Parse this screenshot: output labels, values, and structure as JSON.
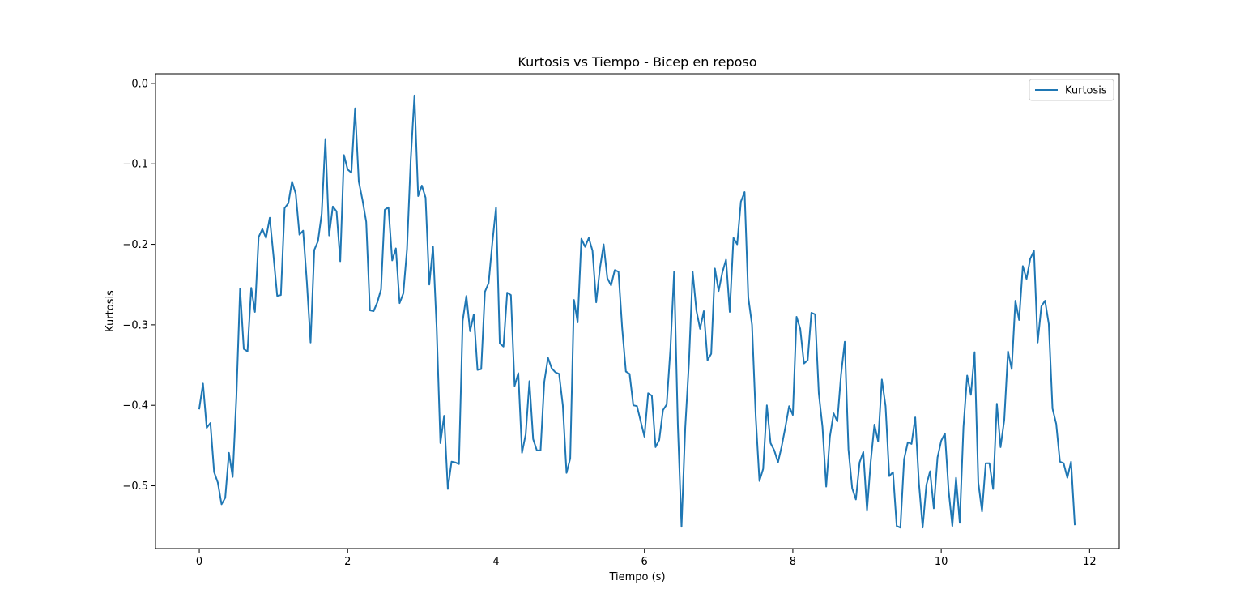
{
  "chart_data": {
    "type": "line",
    "title": "Kurtosis vs Tiempo - Bicep en reposo",
    "xlabel": "Tiempo (s)",
    "ylabel": "Kurtosis",
    "xlim": [
      -0.59,
      12.4
    ],
    "ylim": [
      -0.578,
      0.012
    ],
    "xticks": [
      0,
      2,
      4,
      6,
      8,
      10,
      12
    ],
    "xtick_labels": [
      "0",
      "2",
      "4",
      "6",
      "8",
      "10",
      "12"
    ],
    "yticks": [
      0.0,
      -0.1,
      -0.2,
      -0.3,
      -0.4,
      -0.5
    ],
    "ytick_labels": [
      "0.0",
      "−0.1",
      "−0.2",
      "−0.3",
      "−0.4",
      "−0.5"
    ],
    "grid": false,
    "legend_position": "upper right",
    "color": "#1f77b4",
    "series": [
      {
        "name": "Kurtosis",
        "x": [
          0.0,
          0.05,
          0.1,
          0.15,
          0.2,
          0.25,
          0.3,
          0.35,
          0.4,
          0.45,
          0.5,
          0.55,
          0.6,
          0.65,
          0.7,
          0.75,
          0.8,
          0.85,
          0.9,
          0.95,
          1.0,
          1.05,
          1.1,
          1.15,
          1.2,
          1.25,
          1.3,
          1.35,
          1.4,
          1.45,
          1.5,
          1.55,
          1.6,
          1.65,
          1.7,
          1.75,
          1.8,
          1.85,
          1.9,
          1.95,
          2.0,
          2.05,
          2.1,
          2.15,
          2.2,
          2.25,
          2.3,
          2.35,
          2.4,
          2.45,
          2.5,
          2.55,
          2.6,
          2.65,
          2.7,
          2.75,
          2.8,
          2.85,
          2.9,
          2.95,
          3.0,
          3.05,
          3.1,
          3.15,
          3.2,
          3.25,
          3.3,
          3.35,
          3.4,
          3.45,
          3.5,
          3.55,
          3.6,
          3.65,
          3.7,
          3.75,
          3.8,
          3.85,
          3.9,
          3.95,
          4.0,
          4.05,
          4.1,
          4.15,
          4.2,
          4.25,
          4.3,
          4.35,
          4.4,
          4.45,
          4.5,
          4.55,
          4.6,
          4.65,
          4.7,
          4.75,
          4.8,
          4.85,
          4.9,
          4.95,
          5.0,
          5.05,
          5.1,
          5.15,
          5.2,
          5.25,
          5.3,
          5.35,
          5.4,
          5.45,
          5.5,
          5.55,
          5.6,
          5.65,
          5.7,
          5.75,
          5.8,
          5.85,
          5.9,
          5.95,
          6.0,
          6.05,
          6.1,
          6.15,
          6.2,
          6.25,
          6.3,
          6.35,
          6.4,
          6.45,
          6.5,
          6.55,
          6.6,
          6.65,
          6.7,
          6.75,
          6.8,
          6.85,
          6.9,
          6.95,
          7.0,
          7.05,
          7.1,
          7.15,
          7.2,
          7.25,
          7.3,
          7.35,
          7.4,
          7.45,
          7.5,
          7.55,
          7.6,
          7.65,
          7.7,
          7.75,
          7.8,
          7.85,
          7.9,
          7.95,
          8.0,
          8.05,
          8.1,
          8.15,
          8.2,
          8.25,
          8.3,
          8.35,
          8.4,
          8.45,
          8.5,
          8.55,
          8.6,
          8.65,
          8.7,
          8.75,
          8.8,
          8.85,
          8.9,
          8.95,
          9.0,
          9.05,
          9.1,
          9.15,
          9.2,
          9.25,
          9.3,
          9.35,
          9.4,
          9.45,
          9.5,
          9.55,
          9.6,
          9.65,
          9.7,
          9.75,
          9.8,
          9.85,
          9.9,
          9.95,
          10.0,
          10.05,
          10.1,
          10.15,
          10.2,
          10.25,
          10.3,
          10.35,
          10.4,
          10.45,
          10.5,
          10.55,
          10.6,
          10.65,
          10.7,
          10.75,
          10.8,
          10.85,
          10.9,
          10.95,
          11.0,
          11.05,
          11.1,
          11.15,
          11.2,
          11.25,
          11.3,
          11.35,
          11.4,
          11.45,
          11.5,
          11.55,
          11.6,
          11.65,
          11.7,
          11.75,
          11.8
        ],
        "y": [
          -0.404,
          -0.373,
          -0.428,
          -0.422,
          -0.483,
          -0.496,
          -0.523,
          -0.515,
          -0.459,
          -0.489,
          -0.39,
          -0.255,
          -0.33,
          -0.333,
          -0.254,
          -0.284,
          -0.191,
          -0.181,
          -0.192,
          -0.167,
          -0.214,
          -0.264,
          -0.263,
          -0.155,
          -0.149,
          -0.122,
          -0.137,
          -0.188,
          -0.183,
          -0.247,
          -0.322,
          -0.207,
          -0.196,
          -0.162,
          -0.069,
          -0.189,
          -0.153,
          -0.159,
          -0.221,
          -0.089,
          -0.107,
          -0.111,
          -0.031,
          -0.122,
          -0.145,
          -0.172,
          -0.282,
          -0.283,
          -0.272,
          -0.256,
          -0.157,
          -0.154,
          -0.22,
          -0.205,
          -0.273,
          -0.261,
          -0.206,
          -0.095,
          -0.015,
          -0.14,
          -0.127,
          -0.142,
          -0.25,
          -0.203,
          -0.305,
          -0.447,
          -0.413,
          -0.504,
          -0.47,
          -0.471,
          -0.473,
          -0.295,
          -0.264,
          -0.308,
          -0.287,
          -0.356,
          -0.355,
          -0.259,
          -0.248,
          -0.198,
          -0.154,
          -0.323,
          -0.327,
          -0.26,
          -0.263,
          -0.376,
          -0.36,
          -0.459,
          -0.436,
          -0.37,
          -0.442,
          -0.456,
          -0.456,
          -0.371,
          -0.341,
          -0.354,
          -0.359,
          -0.361,
          -0.4,
          -0.484,
          -0.466,
          -0.269,
          -0.297,
          -0.193,
          -0.203,
          -0.192,
          -0.208,
          -0.272,
          -0.23,
          -0.2,
          -0.242,
          -0.251,
          -0.232,
          -0.234,
          -0.304,
          -0.358,
          -0.361,
          -0.4,
          -0.401,
          -0.42,
          -0.439,
          -0.385,
          -0.388,
          -0.452,
          -0.443,
          -0.406,
          -0.399,
          -0.33,
          -0.234,
          -0.424,
          -0.551,
          -0.428,
          -0.347,
          -0.234,
          -0.282,
          -0.305,
          -0.283,
          -0.344,
          -0.336,
          -0.23,
          -0.258,
          -0.235,
          -0.219,
          -0.284,
          -0.192,
          -0.2,
          -0.147,
          -0.135,
          -0.266,
          -0.3,
          -0.414,
          -0.494,
          -0.479,
          -0.4,
          -0.447,
          -0.456,
          -0.471,
          -0.451,
          -0.427,
          -0.401,
          -0.412,
          -0.29,
          -0.305,
          -0.348,
          -0.344,
          -0.285,
          -0.287,
          -0.385,
          -0.427,
          -0.501,
          -0.439,
          -0.41,
          -0.42,
          -0.362,
          -0.321,
          -0.455,
          -0.503,
          -0.517,
          -0.471,
          -0.458,
          -0.531,
          -0.47,
          -0.424,
          -0.445,
          -0.368,
          -0.401,
          -0.488,
          -0.483,
          -0.55,
          -0.552,
          -0.467,
          -0.446,
          -0.448,
          -0.415,
          -0.497,
          -0.552,
          -0.499,
          -0.482,
          -0.528,
          -0.465,
          -0.444,
          -0.435,
          -0.506,
          -0.55,
          -0.49,
          -0.546,
          -0.427,
          -0.363,
          -0.387,
          -0.334,
          -0.496,
          -0.532,
          -0.472,
          -0.472,
          -0.504,
          -0.398,
          -0.452,
          -0.418,
          -0.333,
          -0.355,
          -0.27,
          -0.294,
          -0.227,
          -0.243,
          -0.218,
          -0.208,
          -0.322,
          -0.277,
          -0.27,
          -0.299,
          -0.404,
          -0.423,
          -0.47,
          -0.472,
          -0.49,
          -0.47,
          -0.548
        ]
      }
    ]
  }
}
